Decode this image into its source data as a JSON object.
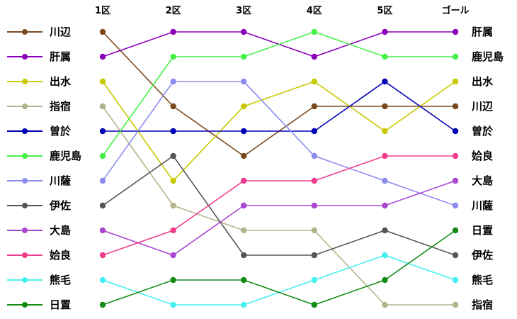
{
  "chart_data": {
    "type": "line",
    "title": "",
    "xlabel": "",
    "ylabel": "",
    "x": [
      "1区",
      "2区",
      "3区",
      "4区",
      "5区",
      "ゴール"
    ],
    "ylim": [
      1,
      12
    ],
    "y_inverted": true,
    "series": [
      {
        "name": "川辺",
        "color": "#7a4a1e",
        "values": [
          1,
          4,
          6,
          4,
          4,
          4
        ]
      },
      {
        "name": "肝属",
        "color": "#8a00b8",
        "values": [
          2,
          1,
          1,
          2,
          1,
          1
        ]
      },
      {
        "name": "出水",
        "color": "#c8c800",
        "values": [
          3,
          7,
          4,
          3,
          5,
          3
        ]
      },
      {
        "name": "指宿",
        "color": "#b4b48c",
        "values": [
          4,
          8,
          9,
          9,
          12,
          12
        ]
      },
      {
        "name": "曽於",
        "color": "#0000b4",
        "values": [
          5,
          5,
          5,
          5,
          3,
          5
        ]
      },
      {
        "name": "鹿児島",
        "color": "#46f046",
        "values": [
          6,
          2,
          2,
          1,
          2,
          2
        ]
      },
      {
        "name": "川薩",
        "color": "#8c8cf0",
        "values": [
          7,
          3,
          3,
          6,
          7,
          8
        ]
      },
      {
        "name": "伊佐",
        "color": "#555555",
        "values": [
          8,
          6,
          10,
          10,
          9,
          10
        ]
      },
      {
        "name": "大島",
        "color": "#aa46d2",
        "values": [
          9,
          10,
          8,
          8,
          8,
          7
        ]
      },
      {
        "name": "姶良",
        "color": "#f03c8c",
        "values": [
          10,
          9,
          7,
          7,
          6,
          6
        ]
      },
      {
        "name": "熊毛",
        "color": "#46f0f0",
        "values": [
          11,
          12,
          12,
          11,
          10,
          11
        ]
      },
      {
        "name": "日置",
        "color": "#148c14",
        "values": [
          12,
          11,
          11,
          12,
          11,
          9
        ]
      }
    ]
  }
}
